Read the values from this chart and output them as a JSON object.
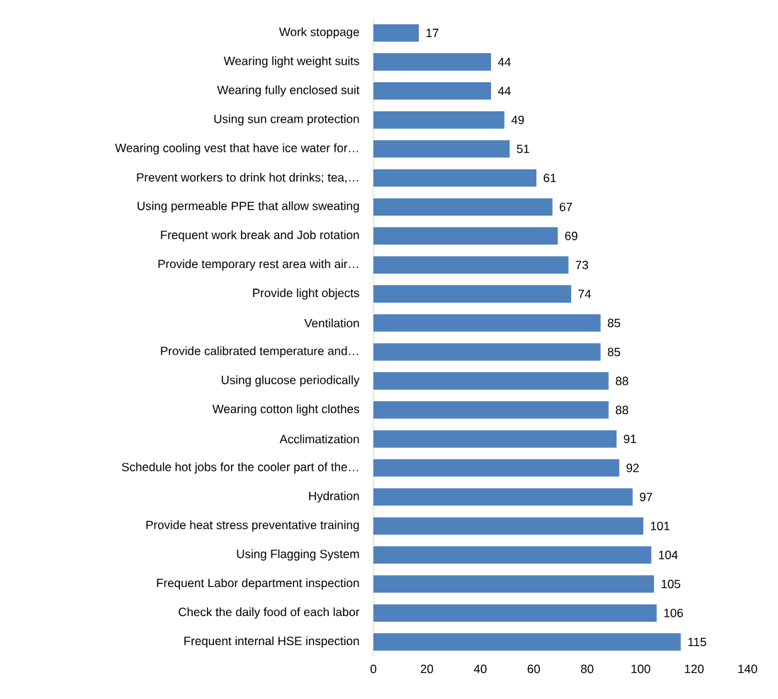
{
  "chart_data": {
    "type": "bar",
    "orientation": "horizontal",
    "categories": [
      "Work stoppage",
      "Wearing light weight suits",
      "Wearing fully enclosed suit",
      "Using sun cream protection",
      "Wearing cooling vest that have ice water for…",
      "Prevent workers to drink hot drinks; tea,…",
      "Using permeable PPE that allow sweating",
      "Frequent work break and Job rotation",
      "Provide temporary rest area with air…",
      "Provide light objects",
      "Ventilation",
      "Provide calibrated temperature and…",
      "Using glucose periodically",
      "Wearing cotton light clothes",
      "Acclimatization",
      "Schedule hot jobs for the cooler part of the…",
      "Hydration",
      "Provide heat stress preventative training",
      "Using Flagging System",
      "Frequent Labor department inspection",
      "Check the daily food of each labor",
      "Frequent internal HSE inspection"
    ],
    "values": [
      17,
      44,
      44,
      49,
      51,
      61,
      67,
      69,
      73,
      74,
      85,
      85,
      88,
      88,
      91,
      92,
      97,
      101,
      104,
      105,
      106,
      115
    ],
    "color": "#4f81bd",
    "data_labels": true,
    "xlim": [
      0,
      140
    ],
    "xticks": [
      0,
      20,
      40,
      60,
      80,
      100,
      120,
      140
    ]
  }
}
